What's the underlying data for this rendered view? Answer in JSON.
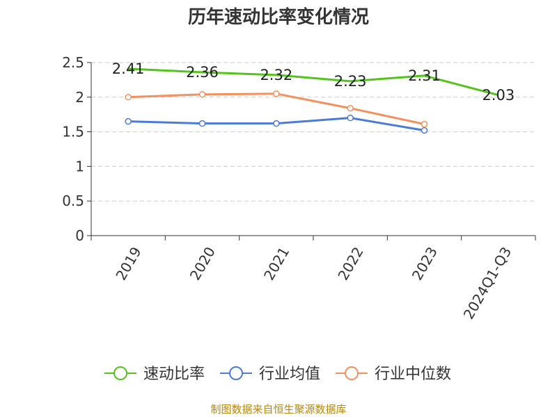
{
  "chart_data": {
    "type": "line",
    "title": "历年速动比率变化情况",
    "categories": [
      "2019",
      "2020",
      "2021",
      "2022",
      "2023",
      "2024Q1-Q3"
    ],
    "y_ticks": [
      "0",
      "0.5",
      "1",
      "1.5",
      "2",
      "2.5"
    ],
    "ylim": [
      0,
      2.5
    ],
    "grid": true,
    "legend_position": "bottom",
    "series": [
      {
        "name": "速动比率",
        "color": "#52c41a",
        "values": [
          2.41,
          2.36,
          2.32,
          2.23,
          2.31,
          2.03
        ],
        "labels": [
          "2.41",
          "2.36",
          "2.32",
          "2.23",
          "2.31",
          "2.03"
        ],
        "show_markers": false,
        "show_labels": true
      },
      {
        "name": "行业均值",
        "color": "#4a7bd9",
        "values": [
          1.65,
          1.62,
          1.62,
          1.7,
          1.52,
          null
        ],
        "show_markers": true,
        "show_labels": false
      },
      {
        "name": "行业中位数",
        "color": "#f5905e",
        "values": [
          2.0,
          2.04,
          2.05,
          1.84,
          1.61,
          null
        ],
        "show_markers": true,
        "show_labels": false
      }
    ]
  },
  "source_text": "制图数据来自恒生聚源数据库"
}
